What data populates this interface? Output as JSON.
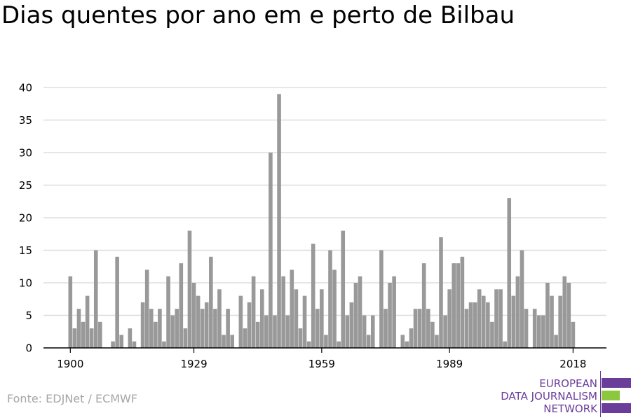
{
  "title": "Dias quentes por ano em e perto de Bilbau",
  "source": "Fonte: EDJNet / ECMWF",
  "logo": {
    "line1": "EUROPEAN",
    "line2": "DATA JOURNALISM",
    "line3": "NETWORK",
    "purple": "#6a3d9a",
    "green": "#8dc63f"
  },
  "colors": {
    "bar": "#999999",
    "grid": "#dddddd",
    "axis": "#000000",
    "text": "#000000"
  },
  "chart_data": {
    "type": "bar",
    "title": "Dias quentes por ano em e perto de Bilbau",
    "xlabel": "",
    "ylabel": "",
    "ylim": [
      0,
      40
    ],
    "yticks": [
      0,
      5,
      10,
      15,
      20,
      25,
      30,
      35,
      40
    ],
    "xticks": [
      1900,
      1929,
      1959,
      1989,
      2018
    ],
    "grid": true,
    "x": [
      1900,
      1901,
      1902,
      1903,
      1904,
      1905,
      1906,
      1907,
      1908,
      1909,
      1910,
      1911,
      1912,
      1913,
      1914,
      1915,
      1916,
      1917,
      1918,
      1919,
      1920,
      1921,
      1922,
      1923,
      1924,
      1925,
      1926,
      1927,
      1928,
      1929,
      1930,
      1931,
      1932,
      1933,
      1934,
      1935,
      1936,
      1937,
      1938,
      1939,
      1940,
      1941,
      1942,
      1943,
      1944,
      1945,
      1946,
      1947,
      1948,
      1949,
      1950,
      1951,
      1952,
      1953,
      1954,
      1955,
      1956,
      1957,
      1958,
      1959,
      1960,
      1961,
      1962,
      1963,
      1964,
      1965,
      1966,
      1967,
      1968,
      1969,
      1970,
      1971,
      1972,
      1973,
      1974,
      1975,
      1976,
      1977,
      1978,
      1979,
      1980,
      1981,
      1982,
      1983,
      1984,
      1985,
      1986,
      1987,
      1988,
      1989,
      1990,
      1991,
      1992,
      1993,
      1994,
      1995,
      1996,
      1997,
      1998,
      1999,
      2000,
      2001,
      2002,
      2003,
      2004,
      2005,
      2006,
      2007,
      2008,
      2009,
      2010,
      2011,
      2012,
      2013,
      2014,
      2015,
      2016,
      2017,
      2018
    ],
    "values": [
      11,
      3,
      6,
      4,
      8,
      3,
      15,
      4,
      0,
      0,
      1,
      14,
      2,
      0,
      3,
      1,
      0,
      7,
      12,
      6,
      4,
      6,
      1,
      11,
      5,
      6,
      13,
      3,
      18,
      10,
      8,
      6,
      7,
      14,
      6,
      9,
      2,
      6,
      2,
      0,
      8,
      3,
      7,
      11,
      4,
      9,
      5,
      30,
      5,
      39,
      11,
      5,
      12,
      9,
      3,
      8,
      1,
      16,
      6,
      9,
      2,
      15,
      12,
      1,
      18,
      5,
      7,
      10,
      11,
      5,
      2,
      5,
      0,
      15,
      6,
      10,
      11,
      0,
      2,
      1,
      3,
      6,
      6,
      13,
      6,
      4,
      2,
      17,
      5,
      9,
      13,
      13,
      14,
      6,
      7,
      7,
      9,
      8,
      7,
      4,
      9,
      9,
      1,
      23,
      8,
      11,
      15,
      6,
      0,
      6,
      5,
      5,
      10,
      8,
      2,
      8,
      11,
      10,
      4
    ]
  }
}
